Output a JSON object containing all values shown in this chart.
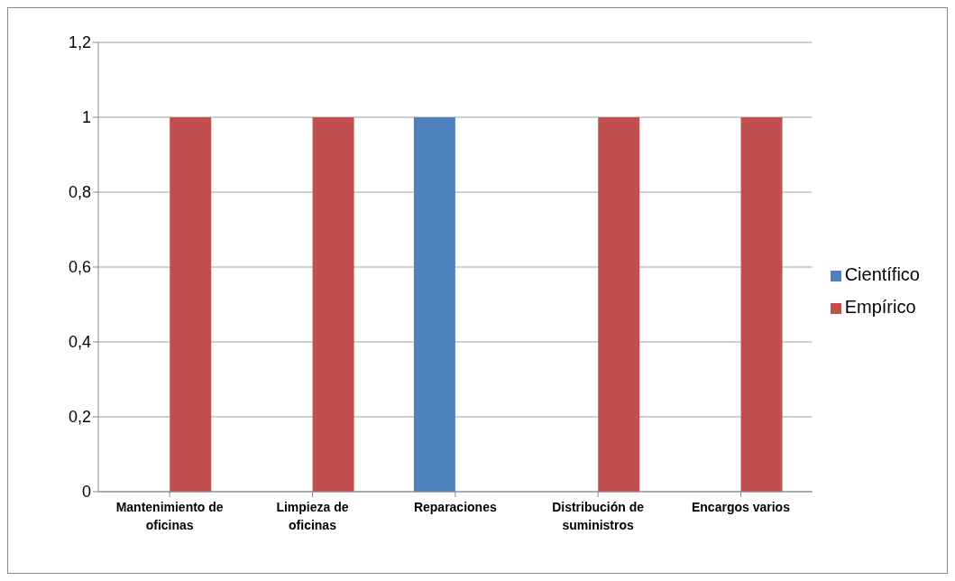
{
  "chart_data": {
    "type": "bar",
    "categories": [
      "Mantenimiento de oficinas",
      "Limpieza de oficinas",
      "Reparaciones",
      "Distribución de suministros",
      "Encargos varios"
    ],
    "series": [
      {
        "name": "Científico",
        "color": "#4f81bd",
        "values": [
          0,
          0,
          1,
          0,
          0
        ]
      },
      {
        "name": "Empírico",
        "color": "#c0504d",
        "values": [
          1,
          1,
          0,
          1,
          1
        ]
      }
    ],
    "ylim": [
      0,
      1.2
    ],
    "yticks": [
      0,
      {
        "value": 0.2,
        "label": "0,2"
      },
      {
        "value": 0.4,
        "label": "0,4"
      },
      {
        "value": 0.6,
        "label": "0,6"
      },
      {
        "value": 0.8,
        "label": "0,8"
      },
      1,
      {
        "value": 1.2,
        "label": "1,2"
      }
    ],
    "grid": "y",
    "legend": "right"
  }
}
